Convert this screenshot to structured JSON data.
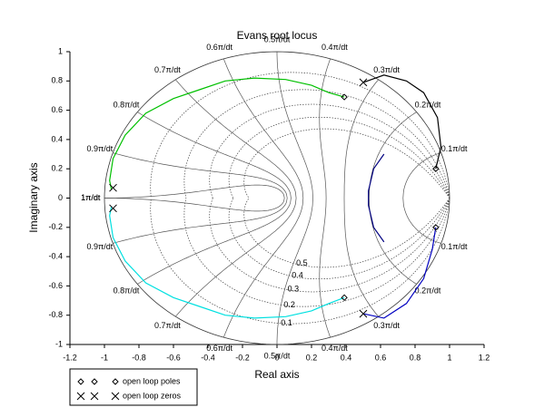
{
  "chart_data": {
    "type": "root_locus",
    "title": "Evans root locus",
    "xlabel": "Real axis",
    "ylabel": "Imaginary axis",
    "xlim": [
      -1.2,
      1.2
    ],
    "ylim": [
      -1,
      1
    ],
    "xticks": [
      -1.2,
      -1,
      -0.8,
      -0.6,
      -0.4,
      -0.2,
      0,
      0.2,
      0.4,
      0.6,
      0.8,
      1,
      1.2
    ],
    "yticks": [
      -1,
      -0.8,
      -0.6,
      -0.4,
      -0.2,
      0,
      0.2,
      0.4,
      0.6,
      0.8,
      1
    ],
    "grid": {
      "damping": [
        0.1,
        0.2,
        0.3,
        0.4,
        0.5
      ],
      "frequency": [
        {
          "value": 0.1,
          "label": "0.1π/dt"
        },
        {
          "value": 0.2,
          "label": "0.2π/dt"
        },
        {
          "value": 0.3,
          "label": "0.3π/dt"
        },
        {
          "value": 0.4,
          "label": "0.4π/dt"
        },
        {
          "value": 0.5,
          "label": "0.5π/dt"
        },
        {
          "value": 0.6,
          "label": "0.6π/dt"
        },
        {
          "value": 0.7,
          "label": "0.7π/dt"
        },
        {
          "value": 0.8,
          "label": "0.8π/dt"
        },
        {
          "value": 0.9,
          "label": "0.9π/dt"
        },
        {
          "value": 1,
          "label": "1π/dt"
        }
      ]
    },
    "series": [
      {
        "color": "#00c000",
        "x": [
          0.39,
          0.3,
          0.2,
          0.05,
          -0.13,
          -0.3,
          -0.45,
          -0.6,
          -0.76,
          -0.88,
          -0.95,
          -0.97,
          -0.96
        ],
        "y": [
          0.69,
          0.72,
          0.77,
          0.81,
          0.82,
          0.8,
          0.74,
          0.68,
          0.58,
          0.43,
          0.27,
          0.12,
          0.06
        ]
      },
      {
        "color": "#00e0e0",
        "x": [
          0.39,
          0.3,
          0.2,
          0.05,
          -0.13,
          -0.3,
          -0.45,
          -0.6,
          -0.76,
          -0.88,
          -0.95,
          -0.97,
          -0.96
        ],
        "y": [
          -0.68,
          -0.72,
          -0.77,
          -0.81,
          -0.82,
          -0.8,
          -0.74,
          -0.68,
          -0.58,
          -0.43,
          -0.27,
          -0.12,
          -0.06
        ]
      },
      {
        "color": "#000000",
        "x": [
          0.92,
          0.95,
          0.93,
          0.85,
          0.75,
          0.62,
          0.5
        ],
        "y": [
          0.2,
          0.35,
          0.55,
          0.72,
          0.8,
          0.84,
          0.79
        ]
      },
      {
        "color": "#000080",
        "x": [
          0.62,
          0.56,
          0.53,
          0.53,
          0.56,
          0.62
        ],
        "y": [
          0.3,
          0.2,
          0.05,
          -0.05,
          -0.2,
          -0.3
        ]
      },
      {
        "color": "#0000c0",
        "x": [
          0.92,
          0.9,
          0.85,
          0.75,
          0.62,
          0.5
        ],
        "y": [
          -0.2,
          -0.35,
          -0.55,
          -0.72,
          -0.82,
          -0.79
        ]
      }
    ],
    "poles": {
      "name": "open loop poles",
      "x": [
        0.39,
        0.39,
        0.92,
        0.92
      ],
      "y": [
        0.69,
        -0.68,
        0.2,
        -0.2
      ]
    },
    "zeros": {
      "name": "open loop zeros",
      "x": [
        0.5,
        0.5,
        -0.95,
        -0.95
      ],
      "y": [
        0.79,
        -0.79,
        0.07,
        -0.07
      ]
    }
  }
}
